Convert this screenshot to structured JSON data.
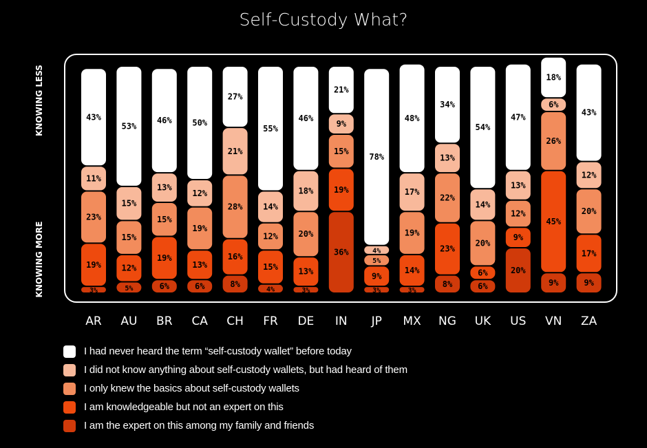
{
  "title": "Self-Custody What?",
  "axis_labels": {
    "top": "KNOWING LESS",
    "bottom": "KNOWING MORE"
  },
  "colors": {
    "background": "#000000",
    "segments": [
      "#ffffff",
      "#f8b99b",
      "#f28c5c",
      "#ee4a0d",
      "#d03a0a"
    ]
  },
  "chart_data": {
    "type": "bar",
    "stacked": true,
    "title": "Self-Custody What?",
    "categories": [
      "AR",
      "AU",
      "BR",
      "CA",
      "CH",
      "FR",
      "DE",
      "IN",
      "JP",
      "MX",
      "NG",
      "UK",
      "US",
      "VN",
      "ZA"
    ],
    "ylim": [
      0,
      100
    ],
    "series": [
      {
        "name": "I had never heard the term “self-custody wallet” before today",
        "values": [
          43,
          53,
          46,
          50,
          27,
          55,
          46,
          21,
          78,
          48,
          34,
          54,
          47,
          18,
          43
        ]
      },
      {
        "name": "I did not know anything about self-custody wallets, but had heard of them",
        "values": [
          11,
          15,
          13,
          12,
          21,
          14,
          18,
          9,
          4,
          17,
          13,
          14,
          13,
          6,
          12
        ]
      },
      {
        "name": "I only knew the basics about self-custody wallets",
        "values": [
          23,
          15,
          15,
          19,
          28,
          12,
          20,
          15,
          5,
          19,
          22,
          20,
          12,
          26,
          20
        ]
      },
      {
        "name": "I am knowledgeable but not an expert on this",
        "values": [
          19,
          12,
          19,
          13,
          16,
          15,
          13,
          19,
          9,
          14,
          23,
          6,
          9,
          45,
          17
        ]
      },
      {
        "name": "I am the expert on this among my family and friends",
        "values": [
          3,
          5,
          6,
          6,
          8,
          4,
          3,
          36,
          3,
          3,
          8,
          6,
          20,
          9,
          9
        ]
      }
    ],
    "legend": [
      "I had never heard the term “self-custody wallet” before today",
      "I did not know anything about self-custody wallets, but had heard of them",
      "I only knew the basics about self-custody wallets",
      "I am knowledgeable but not an expert on this",
      "I am the expert on this among my family and friends"
    ]
  }
}
